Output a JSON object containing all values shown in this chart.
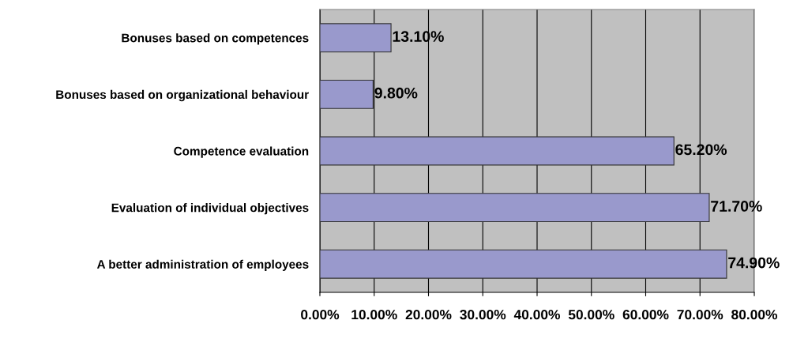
{
  "chart_data": {
    "type": "bar",
    "orientation": "horizontal",
    "categories": [
      "Bonuses based on competences",
      "Bonuses based on organizational behaviour",
      "Competence evaluation",
      "Evaluation of individual objectives",
      "A better administration of employees"
    ],
    "values": [
      13.1,
      9.8,
      65.2,
      71.7,
      74.9
    ],
    "value_labels": [
      "13.10%",
      "9.80%",
      "65.20%",
      "71.70%",
      "74.90%"
    ],
    "color": "#9999cc",
    "xlim": [
      0,
      80
    ],
    "xticks": [
      {
        "value": 0,
        "label": "0.00%"
      },
      {
        "value": 10,
        "label": "10.00%"
      },
      {
        "value": 20,
        "label": "20.00%"
      },
      {
        "value": 30,
        "label": "30.00%"
      },
      {
        "value": 40,
        "label": "40.00%"
      },
      {
        "value": 50,
        "label": "50.00%"
      },
      {
        "value": 60,
        "label": "60.00%"
      },
      {
        "value": 70,
        "label": "70.00%"
      },
      {
        "value": 80,
        "label": "80.00%"
      }
    ],
    "grid": "x"
  }
}
